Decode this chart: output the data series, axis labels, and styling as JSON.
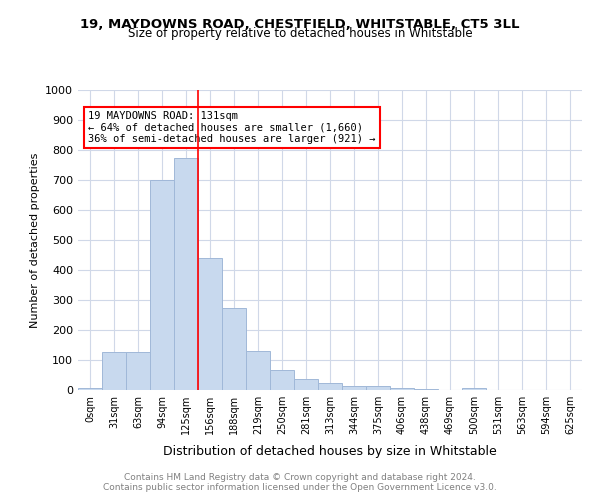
{
  "title_line1": "19, MAYDOWNS ROAD, CHESTFIELD, WHITSTABLE, CT5 3LL",
  "title_line2": "Size of property relative to detached houses in Whitstable",
  "xlabel": "Distribution of detached houses by size in Whitstable",
  "ylabel": "Number of detached properties",
  "categories": [
    "0sqm",
    "31sqm",
    "63sqm",
    "94sqm",
    "125sqm",
    "156sqm",
    "188sqm",
    "219sqm",
    "250sqm",
    "281sqm",
    "313sqm",
    "344sqm",
    "375sqm",
    "406sqm",
    "438sqm",
    "469sqm",
    "500sqm",
    "531sqm",
    "563sqm",
    "594sqm",
    "625sqm"
  ],
  "values": [
    8,
    128,
    128,
    700,
    775,
    440,
    275,
    130,
    68,
    38,
    25,
    12,
    12,
    8,
    5,
    0,
    8,
    0,
    0,
    0,
    0
  ],
  "bar_color": "#c8d9ee",
  "bar_edge_color": "#a0b8d8",
  "red_line_x": 4.5,
  "property_sqm": 131,
  "property_label": "19 MAYDOWNS ROAD: 131sqm",
  "annot_line2": "← 64% of detached houses are smaller (1,660)",
  "annot_line3": "36% of semi-detached houses are larger (921) →",
  "footer_line1": "Contains HM Land Registry data © Crown copyright and database right 2024.",
  "footer_line2": "Contains public sector information licensed under the Open Government Licence v3.0.",
  "ylim": [
    0,
    1000
  ],
  "yticks": [
    0,
    100,
    200,
    300,
    400,
    500,
    600,
    700,
    800,
    900,
    1000
  ],
  "background_color": "#ffffff",
  "grid_color": "#d0d8e8"
}
